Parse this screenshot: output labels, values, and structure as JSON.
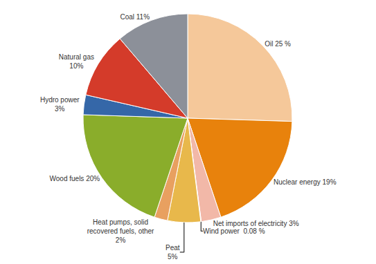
{
  "chart_data": {
    "type": "pie",
    "categories": [
      "Oil 25 %",
      "Nuclear energy 19%",
      "Net imports of electricity 3%",
      "Wind power  0.08 %",
      "Peat\n5%",
      "Heat pumps, solid\nrecovered fuels, other\n2%",
      "Wood fuels 20%",
      "Hydro power\n3%",
      "Natural gas\n10%",
      "Coal 11%"
    ],
    "values": [
      25,
      19,
      3,
      0.08,
      5,
      2,
      20,
      3,
      10,
      11
    ],
    "colors": [
      "#F5C89A",
      "#E8820C",
      "#F2B8A8",
      "#F2B8A8",
      "#E8B84B",
      "#E8A060",
      "#8AAD2B",
      "#3567A8",
      "#D43B2A",
      "#8C9099"
    ]
  }
}
